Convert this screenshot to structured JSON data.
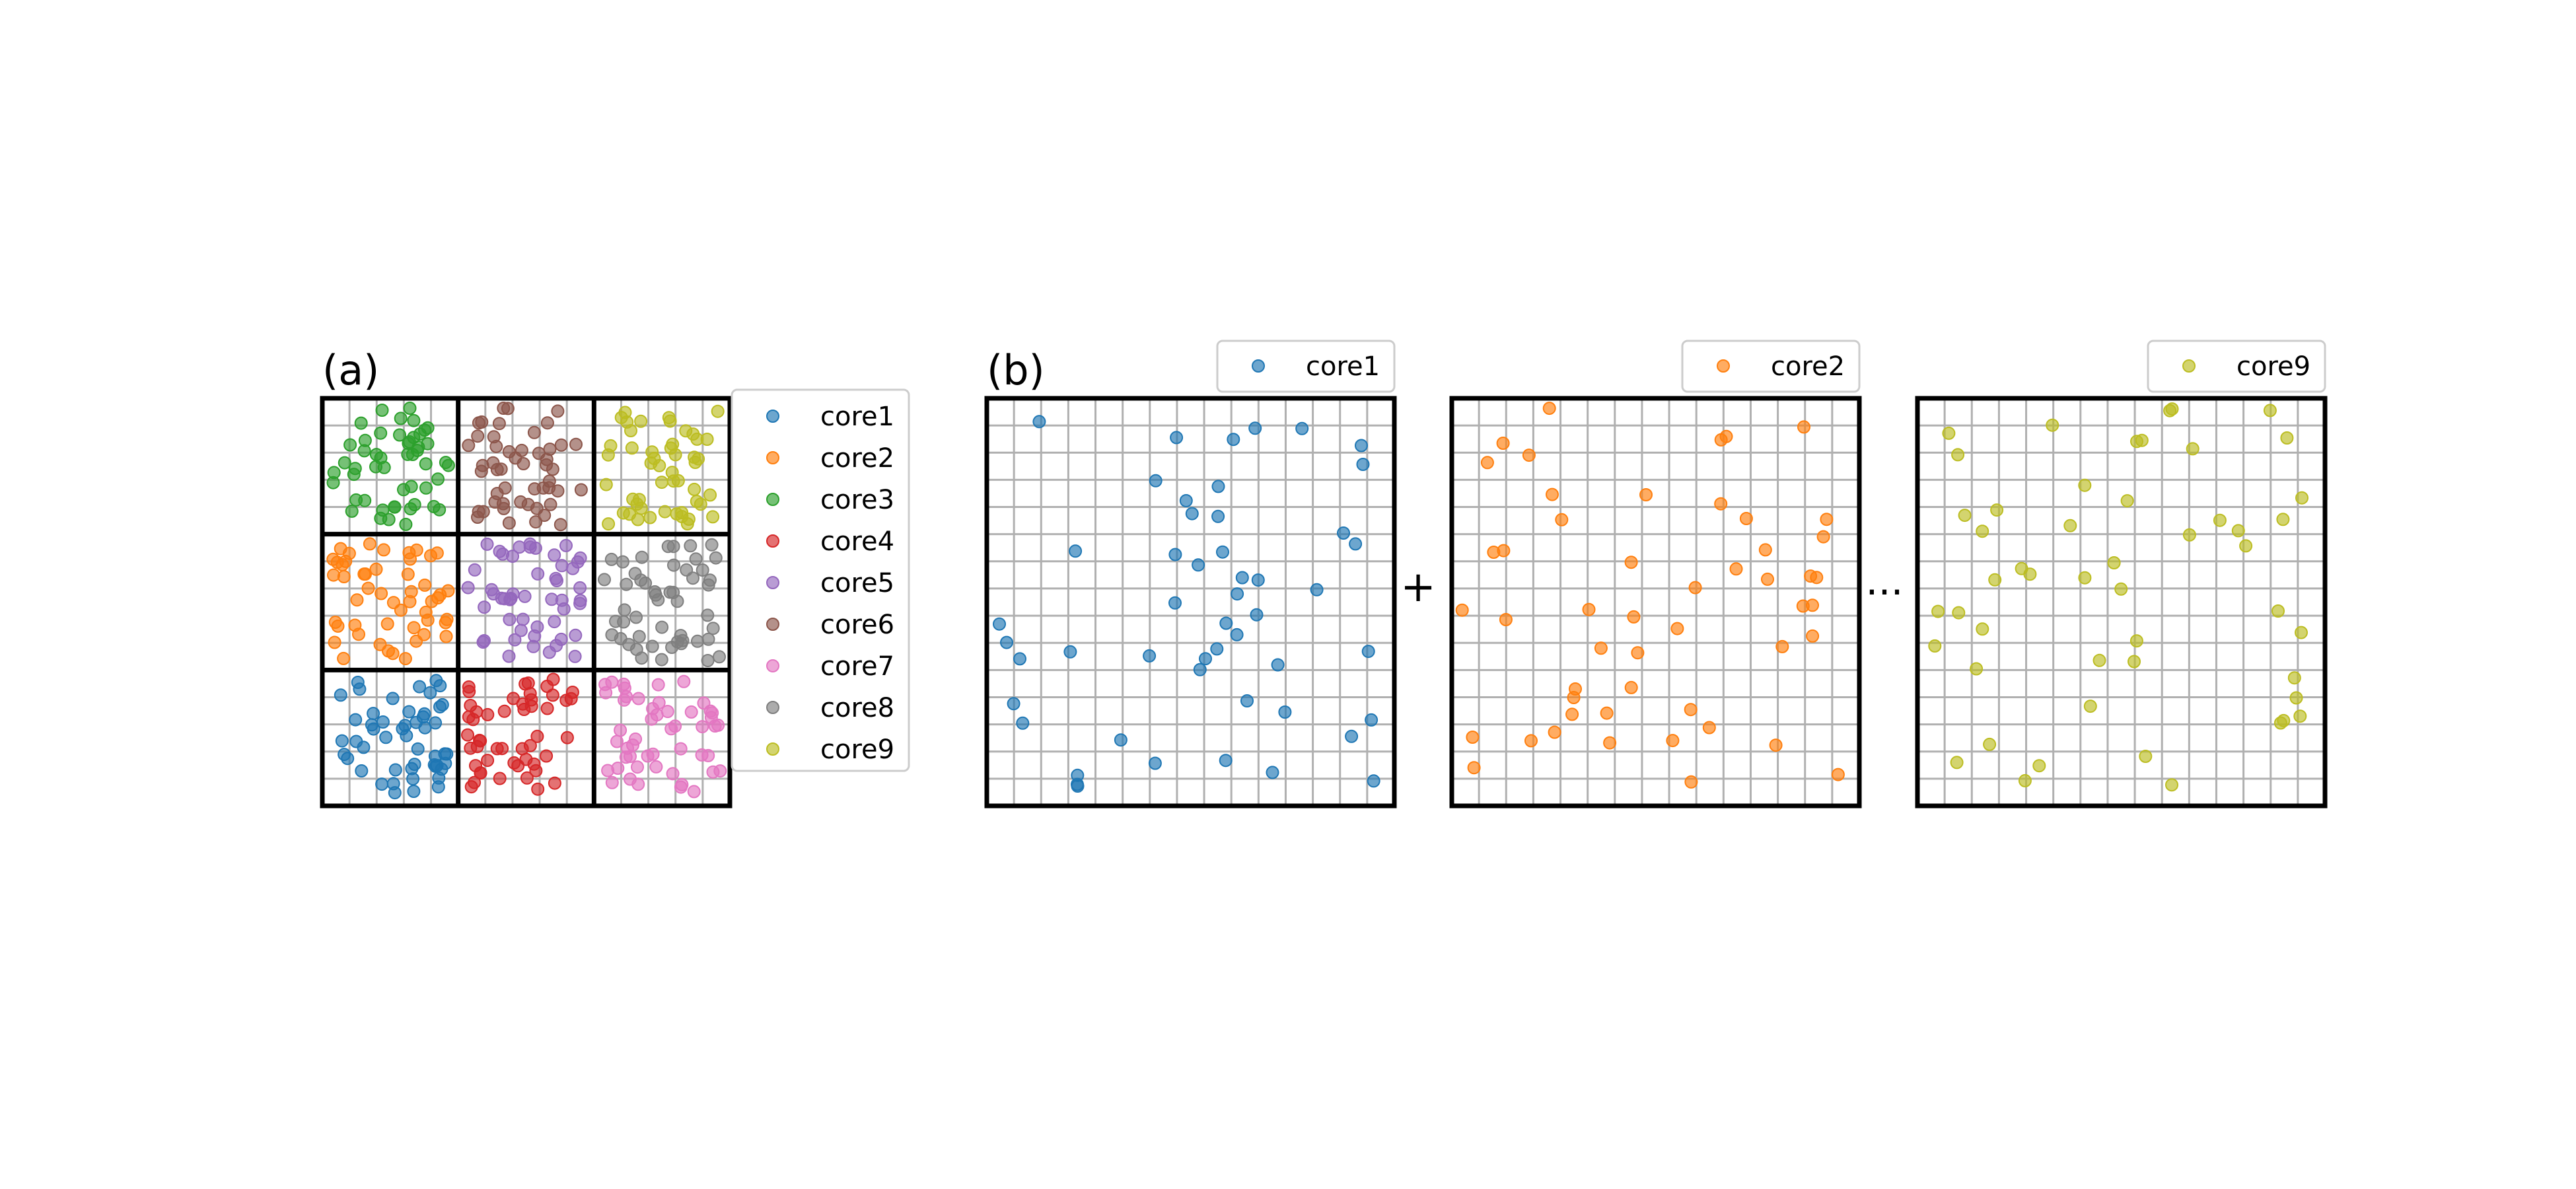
{
  "panel_a": {
    "label": "(a)"
  },
  "panel_b": {
    "label": "(b)",
    "plus": "+",
    "ellipsis": "..."
  },
  "legend_a": [
    {
      "name": "core1",
      "color": "#1f77b4"
    },
    {
      "name": "core2",
      "color": "#ff7f0e"
    },
    {
      "name": "core3",
      "color": "#2ca02c"
    },
    {
      "name": "core4",
      "color": "#d62728"
    },
    {
      "name": "core5",
      "color": "#9467bd"
    },
    {
      "name": "core6",
      "color": "#8c564b"
    },
    {
      "name": "core7",
      "color": "#e377c2"
    },
    {
      "name": "core8",
      "color": "#7f7f7f"
    },
    {
      "name": "core9",
      "color": "#bcbd22"
    }
  ],
  "subplots_b": [
    {
      "legend": "core1",
      "color": "#1f77b4"
    },
    {
      "legend": "core2",
      "color": "#ff7f0e"
    },
    {
      "legend": "core9",
      "color": "#bcbd22"
    }
  ],
  "chart_data": {
    "type": "scatter",
    "grid": true,
    "panel_a_cells": [
      [
        "core3",
        "core6",
        "core9"
      ],
      [
        "core2",
        "core5",
        "core8"
      ],
      [
        "core1",
        "core4",
        "core7"
      ]
    ],
    "points_per_cell_a": 50,
    "points_per_subplot_b": 50
  }
}
